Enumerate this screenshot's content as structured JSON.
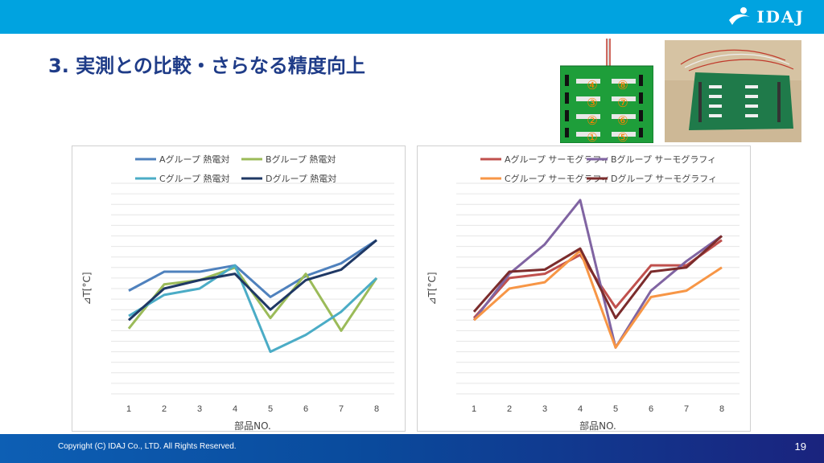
{
  "header": {
    "logo_text": "IDAJ"
  },
  "title": "3. 実測との比較・さらなる精度向上",
  "board_labels": {
    "left_column": [
      "④",
      "③",
      "②",
      "①"
    ],
    "right_column": [
      "⑧",
      "⑦",
      "⑥",
      "⑤"
    ]
  },
  "colors": {
    "topbar": "#00a3e0",
    "title": "#1f3c88",
    "footer": "#0a4a9c",
    "label_orange": "#ff7f00"
  },
  "chart_data": [
    {
      "type": "line",
      "title": "",
      "xlabel": "部品NO.",
      "ylabel": "⊿T[°C]",
      "x": [
        1,
        2,
        3,
        4,
        5,
        6,
        7,
        8
      ],
      "ylim": [
        0,
        1
      ],
      "grid": true,
      "legend": "top",
      "series": [
        {
          "name": "Aグループ 熱電対",
          "color": "#4f81bd",
          "values": [
            0.49,
            0.58,
            0.58,
            0.61,
            0.46,
            0.56,
            0.62,
            0.73
          ]
        },
        {
          "name": "Bグループ 熱電対",
          "color": "#9bbb59",
          "values": [
            0.31,
            0.52,
            0.54,
            0.6,
            0.36,
            0.57,
            0.3,
            0.55
          ]
        },
        {
          "name": "Cグループ 熱電対",
          "color": "#4bacc6",
          "values": [
            0.37,
            0.47,
            0.5,
            0.61,
            0.2,
            0.28,
            0.39,
            0.55
          ]
        },
        {
          "name": "Dグループ 熱電対",
          "color": "#1f3864",
          "values": [
            0.35,
            0.5,
            0.54,
            0.57,
            0.4,
            0.54,
            0.59,
            0.73
          ]
        }
      ]
    },
    {
      "type": "line",
      "title": "",
      "xlabel": "部品NO.",
      "ylabel": "⊿T[°C]",
      "x": [
        1,
        2,
        3,
        4,
        5,
        6,
        7,
        8
      ],
      "ylim": [
        0,
        1
      ],
      "grid": true,
      "legend": "top",
      "series": [
        {
          "name": "Aグループ サーモグラフィ",
          "color": "#c0504d",
          "values": [
            0.36,
            0.55,
            0.57,
            0.66,
            0.41,
            0.61,
            0.61,
            0.73
          ]
        },
        {
          "name": "Bグループ サーモグラフィ",
          "color": "#8064a2",
          "values": [
            0.35,
            0.57,
            0.71,
            0.92,
            0.22,
            0.49,
            0.63,
            0.75
          ]
        },
        {
          "name": "Cグループ サーモグラフィ",
          "color": "#f79646",
          "values": [
            0.35,
            0.5,
            0.53,
            0.68,
            0.22,
            0.46,
            0.49,
            0.6
          ]
        },
        {
          "name": "Dグループ サーモグラフィ",
          "color": "#7b2c2c",
          "values": [
            0.39,
            0.58,
            0.59,
            0.69,
            0.36,
            0.58,
            0.6,
            0.75
          ]
        }
      ]
    }
  ],
  "footer": {
    "copyright": "Copyright (C) IDAJ Co., LTD. All Rights Reserved.",
    "page_number": "19"
  }
}
